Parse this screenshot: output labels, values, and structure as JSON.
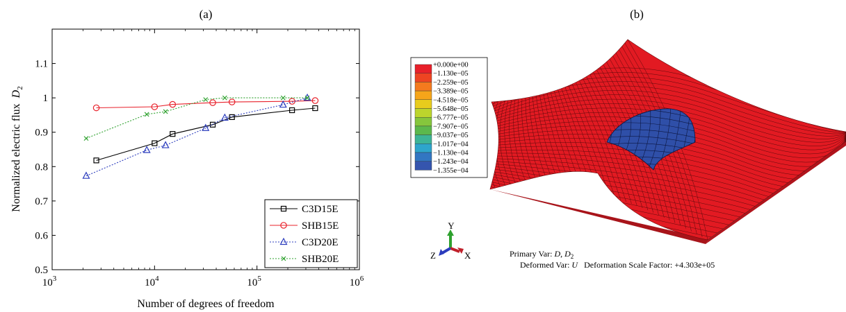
{
  "chart_data": [
    {
      "type": "line",
      "panel_label": "(a)",
      "xlabel": "Number of degrees of freedom",
      "ylabel": "Normalized electric flux",
      "ylabel_sym": "D",
      "ylabel_sub": "2",
      "xscale": "log",
      "xlim": [
        1000,
        1000000
      ],
      "ylim": [
        0.5,
        1.2
      ],
      "xtick_base": "10",
      "xticks": [
        {
          "value": 1000,
          "exp": "3"
        },
        {
          "value": 10000,
          "exp": "4"
        },
        {
          "value": 100000,
          "exp": "5"
        },
        {
          "value": 1000000,
          "exp": "6"
        }
      ],
      "yticks": [
        0.5,
        0.6,
        0.7,
        0.8,
        0.9,
        1.0
      ],
      "ytick_labels": [
        "0.5",
        "0.6",
        "0.7",
        "0.8",
        "0.9",
        "1",
        "1.1"
      ],
      "ytick_values": [
        0.5,
        0.6,
        0.7,
        0.8,
        0.9,
        1.0,
        1.1
      ],
      "grid": false,
      "legend_position": "bottom-right",
      "series": [
        {
          "name": "C3D15E",
          "color": "#000000",
          "marker": "square",
          "dash": "solid",
          "x": [
            2700,
            10000,
            15000,
            37000,
            57000,
            220000,
            370000
          ],
          "y": [
            0.818,
            0.868,
            0.895,
            0.922,
            0.944,
            0.964,
            0.97
          ]
        },
        {
          "name": "SHB15E",
          "color": "#e8202a",
          "marker": "circle",
          "dash": "solid",
          "x": [
            2700,
            10000,
            15000,
            37000,
            57000,
            220000,
            370000
          ],
          "y": [
            0.971,
            0.974,
            0.981,
            0.986,
            0.988,
            0.99,
            0.992
          ]
        },
        {
          "name": "C3D20E",
          "color": "#2b3cbd",
          "marker": "triangle",
          "dash": "dotted",
          "x": [
            2150,
            8400,
            12800,
            31500,
            48500,
            180000,
            310000
          ],
          "y": [
            0.773,
            0.848,
            0.862,
            0.912,
            0.942,
            0.98,
            1.0
          ]
        },
        {
          "name": "SHB20E",
          "color": "#2ea12e",
          "marker": "x",
          "dash": "dotted",
          "x": [
            2150,
            8400,
            12800,
            31500,
            48500,
            180000,
            310000
          ],
          "y": [
            0.882,
            0.952,
            0.96,
            0.995,
            1.0,
            1.0,
            1.0
          ]
        }
      ]
    },
    {
      "type": "other",
      "panel_label": "(b)",
      "legend_values": [
        "+0.000e+00",
        "−1.130e−05",
        "−2.259e−05",
        "−3.389e−05",
        "−4.518e−05",
        "−5.648e−05",
        "−6.777e−05",
        "−7.907e−05",
        "−9.037e−05",
        "−1.017e−04",
        "−1.130e−04",
        "−1.243e−04",
        "−1.355e−04"
      ],
      "legend_colors": [
        "#e8202a",
        "#ee4422",
        "#f47a1e",
        "#f6a51a",
        "#e8cc1c",
        "#bcd52c",
        "#86c63c",
        "#5cb84c",
        "#3db496",
        "#2ea5cc",
        "#3276c2",
        "#3555ae"
      ],
      "mesh_color": "#e21a22",
      "dome_color": "#2f4fa8",
      "triad": {
        "y": "Y",
        "x": "X",
        "z": "Z",
        "y_color": "#2ea12e",
        "x_color": "#c0202a",
        "z_color": "#2b3cbd"
      },
      "primary_var_prefix": "Primary Var: ",
      "primary_var_d": "D",
      "primary_var_sep": ", ",
      "primary_var_d2": "D",
      "primary_var_sub": "2",
      "deformed_prefix": "Deformed Var: ",
      "deformed_var": "U",
      "deformed_suffix": "   Deformation Scale Factor: +4.303e+05"
    }
  ]
}
